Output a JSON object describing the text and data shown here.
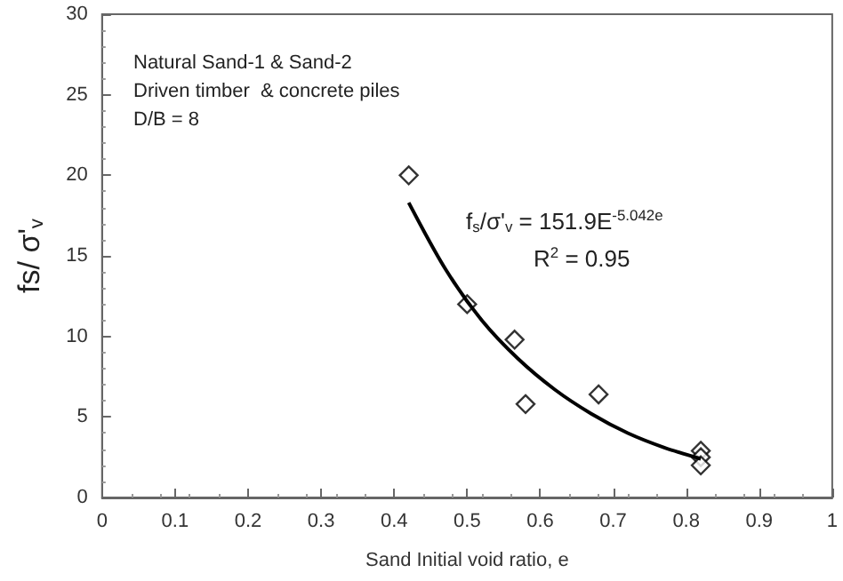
{
  "chart_data": {
    "type": "scatter",
    "xlabel": "Sand Initial void ratio, e",
    "ylabel": "fs/ σ'$_{v}$",
    "xlim": [
      0,
      1
    ],
    "xticks": [
      0,
      0.1,
      0.2,
      0.3,
      0.4,
      0.5,
      0.6,
      0.7,
      0.8,
      0.9,
      1
    ],
    "ylim": [
      0,
      30
    ],
    "yticks": [
      0,
      5,
      10,
      15,
      20,
      25,
      30
    ],
    "grid": false,
    "marker": "diamond",
    "annotations": [
      "Natural Sand-1 & Sand-2",
      "Driven timber  & concrete piles",
      "D/B = 8",
      "f$_{s}$/σ'$_{v}$ = 151.9E$^{-5.042e}$",
      "R$^{2}$ = 0.95"
    ],
    "series": [
      {
        "color": "#000000",
        "x": [
          0.42,
          0.5,
          0.565,
          0.58,
          0.68,
          0.82,
          0.82,
          0.82
        ],
        "values": [
          20,
          12,
          9.8,
          5.8,
          6.4,
          2.9,
          2.5,
          2.0
        ]
      },
      {
        "type": "line",
        "marker": "none",
        "color": "#000000",
        "x": [
          0.42,
          0.47,
          0.52,
          0.57,
          0.62,
          0.67,
          0.72,
          0.77,
          0.82
        ],
        "values": [
          18.3,
          14.2,
          11.0,
          8.6,
          6.7,
          5.2,
          4.0,
          3.1,
          2.4
        ]
      }
    ]
  }
}
